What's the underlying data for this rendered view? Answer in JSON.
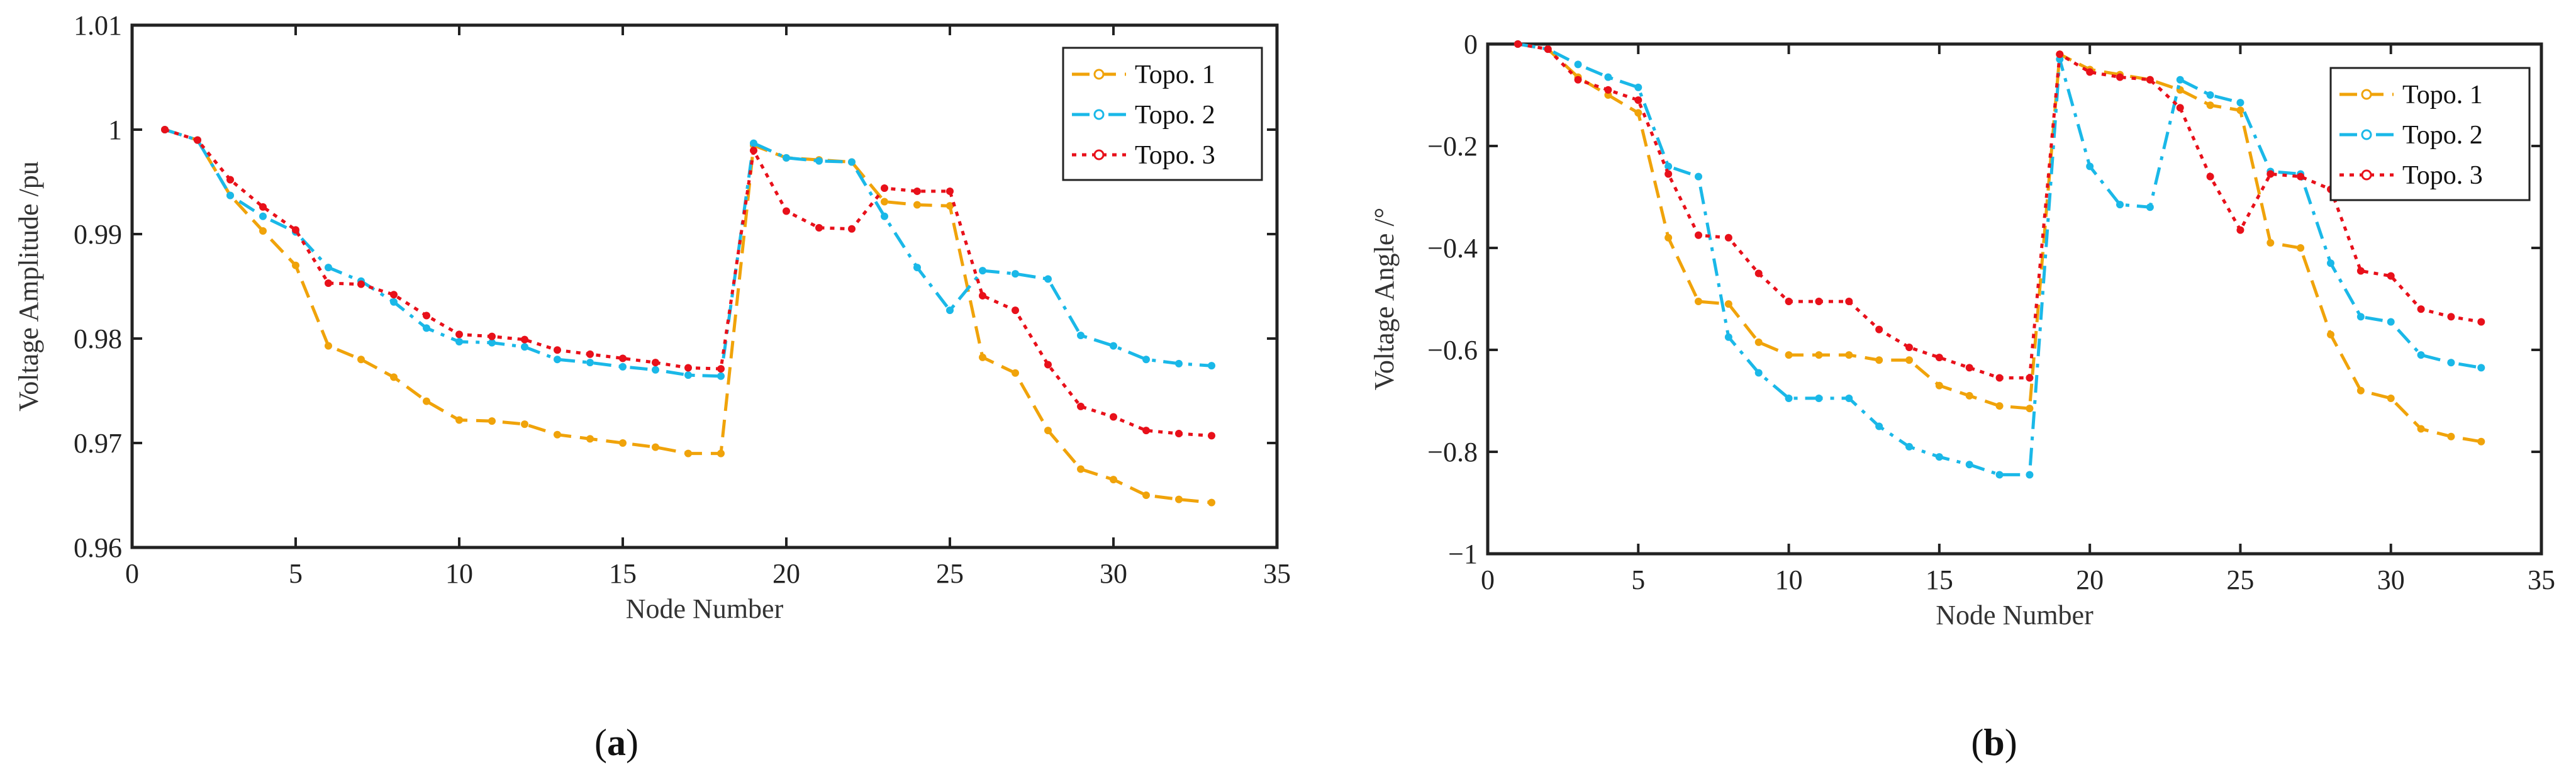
{
  "chart_data": [
    {
      "type": "line",
      "panel_label": "(a)",
      "panel_letter": "a",
      "title": "",
      "xlabel": "Node Number",
      "ylabel": "Voltage Amplitude /pu",
      "xlim": [
        0,
        35
      ],
      "ylim": [
        0.96,
        1.01
      ],
      "xticks": [
        0,
        5,
        10,
        15,
        20,
        25,
        30,
        35
      ],
      "yticks": [
        0.96,
        0.97,
        0.98,
        0.99,
        1,
        1.01
      ],
      "ytick_labels": [
        "0.96",
        "0.97",
        "0.98",
        "0.99",
        "1",
        "1.01"
      ],
      "legend_position": "top-right",
      "grid": false,
      "x": [
        1,
        2,
        3,
        4,
        5,
        6,
        7,
        8,
        9,
        10,
        11,
        12,
        13,
        14,
        15,
        16,
        17,
        18,
        19,
        20,
        21,
        22,
        23,
        24,
        25,
        26,
        27,
        28,
        29,
        30,
        31,
        32,
        33
      ],
      "series": [
        {
          "name": "Topo. 1",
          "color": "#f0a30a",
          "dash": "dashed",
          "values": [
            1.0,
            0.999,
            0.9937,
            0.9903,
            0.987,
            0.9793,
            0.978,
            0.9763,
            0.974,
            0.9722,
            0.9721,
            0.9718,
            0.9708,
            0.9704,
            0.97,
            0.9696,
            0.969,
            0.969,
            0.9985,
            0.9973,
            0.9971,
            0.9969,
            0.9931,
            0.9928,
            0.9927,
            0.9782,
            0.9767,
            0.9712,
            0.9675,
            0.9665,
            0.965,
            0.9646,
            0.9643
          ]
        },
        {
          "name": "Topo. 2",
          "color": "#1ab8e8",
          "dash": "dash-dot",
          "values": [
            1.0,
            0.999,
            0.9937,
            0.9917,
            0.9902,
            0.9868,
            0.9855,
            0.9835,
            0.981,
            0.9797,
            0.9796,
            0.9792,
            0.978,
            0.9777,
            0.9773,
            0.977,
            0.9765,
            0.9764,
            0.9987,
            0.9973,
            0.997,
            0.9969,
            0.9917,
            0.9868,
            0.9827,
            0.9865,
            0.9862,
            0.9857,
            0.9803,
            0.9793,
            0.978,
            0.9776,
            0.9774
          ]
        },
        {
          "name": "Topo. 3",
          "color": "#e8101a",
          "dash": "dotted",
          "values": [
            1.0,
            0.999,
            0.9952,
            0.9926,
            0.9904,
            0.9853,
            0.9852,
            0.9842,
            0.9822,
            0.9804,
            0.9802,
            0.9799,
            0.9789,
            0.9785,
            0.9781,
            0.9777,
            0.9772,
            0.9771,
            0.998,
            0.9922,
            0.9906,
            0.9905,
            0.9944,
            0.9941,
            0.9941,
            0.9841,
            0.9827,
            0.9775,
            0.9735,
            0.9725,
            0.9712,
            0.9709,
            0.9707
          ]
        }
      ]
    },
    {
      "type": "line",
      "panel_label": "(b)",
      "panel_letter": "b",
      "title": "",
      "xlabel": "Node Number",
      "ylabel": "Voltage Angle /°",
      "xlim": [
        0,
        35
      ],
      "ylim": [
        -1,
        0
      ],
      "xticks": [
        0,
        5,
        10,
        15,
        20,
        25,
        30,
        35
      ],
      "yticks": [
        -1,
        -0.8,
        -0.6,
        -0.4,
        -0.2,
        0
      ],
      "ytick_labels": [
        "−1",
        "−0.8",
        "−0.6",
        "−0.4",
        "−0.2",
        "0"
      ],
      "legend_position": "top-right",
      "grid": false,
      "x": [
        1,
        2,
        3,
        4,
        5,
        6,
        7,
        8,
        9,
        10,
        11,
        12,
        13,
        14,
        15,
        16,
        17,
        18,
        19,
        20,
        21,
        22,
        23,
        24,
        25,
        26,
        27,
        28,
        29,
        30,
        31,
        32,
        33
      ],
      "series": [
        {
          "name": "Topo. 1",
          "color": "#f0a30a",
          "dash": "dashed",
          "values": [
            0,
            -0.01,
            -0.065,
            -0.1,
            -0.135,
            -0.38,
            -0.505,
            -0.51,
            -0.585,
            -0.61,
            -0.61,
            -0.61,
            -0.62,
            -0.62,
            -0.67,
            -0.69,
            -0.71,
            -0.715,
            -0.02,
            -0.05,
            -0.06,
            -0.07,
            -0.09,
            -0.12,
            -0.13,
            -0.39,
            -0.4,
            -0.57,
            -0.68,
            -0.695,
            -0.755,
            -0.77,
            -0.78
          ]
        },
        {
          "name": "Topo. 2",
          "color": "#1ab8e8",
          "dash": "dash-dot",
          "values": [
            0,
            -0.01,
            -0.04,
            -0.065,
            -0.085,
            -0.24,
            -0.26,
            -0.575,
            -0.645,
            -0.695,
            -0.695,
            -0.695,
            -0.75,
            -0.79,
            -0.81,
            -0.825,
            -0.845,
            -0.845,
            -0.03,
            -0.24,
            -0.315,
            -0.32,
            -0.07,
            -0.1,
            -0.115,
            -0.25,
            -0.255,
            -0.43,
            -0.535,
            -0.545,
            -0.61,
            -0.625,
            -0.635
          ]
        },
        {
          "name": "Topo. 3",
          "color": "#e8101a",
          "dash": "dotted",
          "values": [
            0,
            -0.01,
            -0.07,
            -0.09,
            -0.11,
            -0.255,
            -0.375,
            -0.38,
            -0.45,
            -0.505,
            -0.505,
            -0.505,
            -0.56,
            -0.595,
            -0.615,
            -0.635,
            -0.655,
            -0.655,
            -0.02,
            -0.055,
            -0.065,
            -0.07,
            -0.125,
            -0.26,
            -0.365,
            -0.255,
            -0.26,
            -0.285,
            -0.445,
            -0.455,
            -0.52,
            -0.535,
            -0.545
          ]
        }
      ]
    }
  ]
}
